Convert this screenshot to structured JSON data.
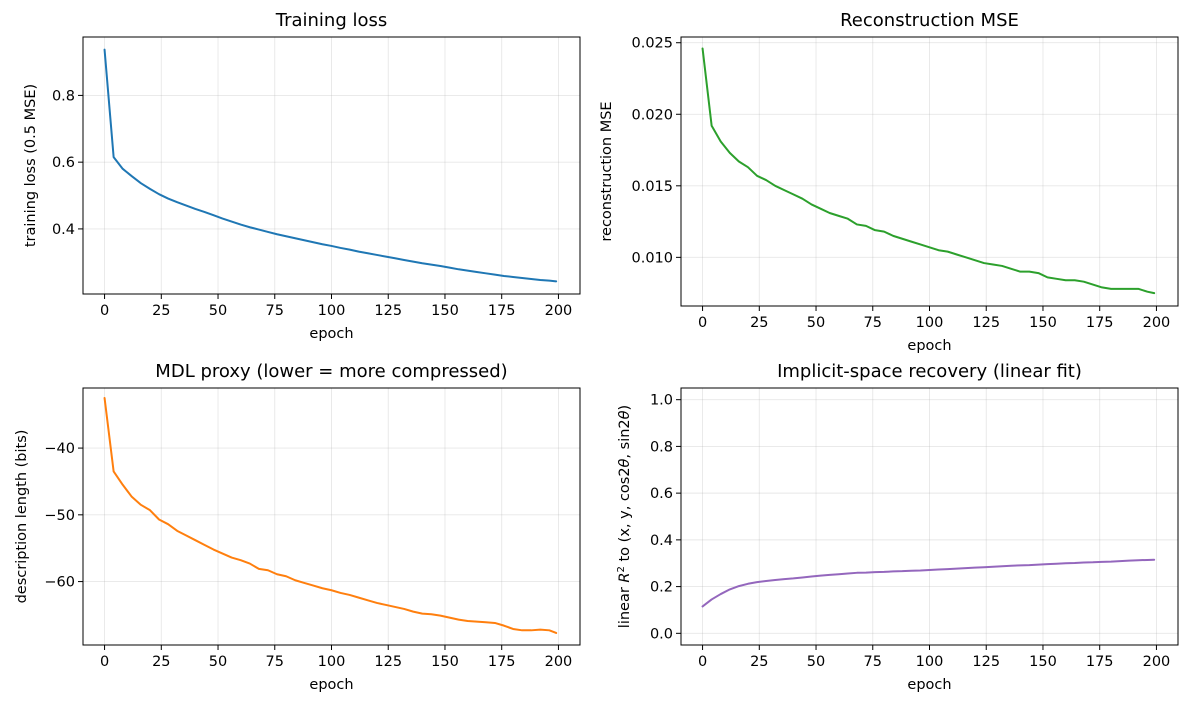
{
  "chart_data": [
    {
      "type": "line",
      "title": "Training loss",
      "xlabel": "epoch",
      "ylabel": "training loss (0.5 MSE)",
      "xlim": [
        -9.5,
        209.5
      ],
      "ylim": [
        0.205,
        0.975
      ],
      "xticks": [
        0,
        25,
        50,
        75,
        100,
        125,
        150,
        175,
        200
      ],
      "yticks": [
        0.4,
        0.6,
        0.8
      ],
      "ytick_labels": [
        "0.4",
        "0.6",
        "0.8"
      ],
      "grid": true,
      "color": "#1f77b4",
      "series": [
        {
          "x": [
            0,
            4,
            8,
            12,
            16,
            20,
            24,
            28,
            32,
            36,
            40,
            44,
            48,
            52,
            56,
            60,
            64,
            68,
            72,
            76,
            80,
            84,
            88,
            92,
            96,
            100,
            104,
            108,
            112,
            116,
            120,
            124,
            128,
            132,
            136,
            140,
            144,
            148,
            152,
            156,
            160,
            164,
            168,
            172,
            176,
            180,
            184,
            188,
            192,
            196,
            199
          ],
          "values": [
            0.937,
            0.615,
            0.58,
            0.558,
            0.537,
            0.52,
            0.504,
            0.491,
            0.48,
            0.47,
            0.46,
            0.451,
            0.441,
            0.431,
            0.422,
            0.413,
            0.405,
            0.398,
            0.391,
            0.384,
            0.378,
            0.372,
            0.366,
            0.36,
            0.354,
            0.349,
            0.343,
            0.338,
            0.332,
            0.327,
            0.322,
            0.317,
            0.312,
            0.307,
            0.302,
            0.297,
            0.293,
            0.289,
            0.284,
            0.279,
            0.275,
            0.271,
            0.267,
            0.263,
            0.259,
            0.256,
            0.253,
            0.25,
            0.247,
            0.245,
            0.243
          ]
        }
      ]
    },
    {
      "type": "line",
      "title": "Reconstruction MSE",
      "xlabel": "epoch",
      "ylabel": "reconstruction MSE",
      "xlim": [
        -9.5,
        209.5
      ],
      "ylim": [
        0.0066,
        0.0254
      ],
      "xticks": [
        0,
        25,
        50,
        75,
        100,
        125,
        150,
        175,
        200
      ],
      "yticks": [
        0.01,
        0.015,
        0.02,
        0.025
      ],
      "ytick_labels": [
        "0.010",
        "0.015",
        "0.020",
        "0.025"
      ],
      "grid": true,
      "color": "#2ca02c",
      "series": [
        {
          "x": [
            0,
            4,
            8,
            12,
            16,
            20,
            24,
            28,
            32,
            36,
            40,
            44,
            48,
            52,
            56,
            60,
            64,
            68,
            72,
            76,
            80,
            84,
            88,
            92,
            96,
            100,
            104,
            108,
            112,
            116,
            120,
            124,
            128,
            132,
            136,
            140,
            144,
            148,
            152,
            156,
            160,
            164,
            168,
            172,
            176,
            180,
            184,
            188,
            192,
            196,
            199
          ],
          "values": [
            0.0246,
            0.0192,
            0.0181,
            0.0173,
            0.0167,
            0.0163,
            0.0157,
            0.0154,
            0.015,
            0.0147,
            0.0144,
            0.0141,
            0.0137,
            0.0134,
            0.0131,
            0.0129,
            0.0127,
            0.0123,
            0.0122,
            0.0119,
            0.0118,
            0.0115,
            0.0113,
            0.0111,
            0.0109,
            0.0107,
            0.0105,
            0.0104,
            0.0102,
            0.01,
            0.0098,
            0.0096,
            0.0095,
            0.0094,
            0.0092,
            0.009,
            0.009,
            0.0089,
            0.0086,
            0.0085,
            0.0084,
            0.0084,
            0.0083,
            0.0081,
            0.0079,
            0.0078,
            0.0078,
            0.0078,
            0.0078,
            0.0076,
            0.0075
          ]
        }
      ]
    },
    {
      "type": "line",
      "title": "MDL proxy (lower = more compressed)",
      "xlabel": "epoch",
      "ylabel": "description length (bits)",
      "xlim": [
        -9.5,
        209.5
      ],
      "ylim": [
        -69.5,
        -31.0
      ],
      "xticks": [
        0,
        25,
        50,
        75,
        100,
        125,
        150,
        175,
        200
      ],
      "yticks": [
        -60,
        -50,
        -40
      ],
      "ytick_labels": [
        "−60",
        "−50",
        "−40"
      ],
      "grid": true,
      "color": "#ff7f0e",
      "series": [
        {
          "x": [
            0,
            4,
            8,
            12,
            16,
            20,
            24,
            28,
            32,
            36,
            40,
            44,
            48,
            52,
            56,
            60,
            64,
            68,
            72,
            76,
            80,
            84,
            88,
            92,
            96,
            100,
            104,
            108,
            112,
            116,
            120,
            124,
            128,
            132,
            136,
            140,
            144,
            148,
            152,
            156,
            160,
            164,
            168,
            172,
            176,
            180,
            184,
            188,
            192,
            196,
            199
          ],
          "values": [
            -32.5,
            -43.5,
            -45.5,
            -47.3,
            -48.5,
            -49.3,
            -50.7,
            -51.4,
            -52.4,
            -53.1,
            -53.8,
            -54.5,
            -55.2,
            -55.8,
            -56.4,
            -56.8,
            -57.3,
            -58.1,
            -58.3,
            -58.9,
            -59.2,
            -59.8,
            -60.2,
            -60.6,
            -61.0,
            -61.3,
            -61.7,
            -62.0,
            -62.4,
            -62.8,
            -63.2,
            -63.5,
            -63.8,
            -64.1,
            -64.5,
            -64.8,
            -64.9,
            -65.1,
            -65.4,
            -65.7,
            -65.9,
            -66.0,
            -66.1,
            -66.2,
            -66.6,
            -67.1,
            -67.3,
            -67.3,
            -67.2,
            -67.3,
            -67.7
          ]
        }
      ]
    },
    {
      "type": "line",
      "title": "Implicit-space recovery (linear fit)",
      "xlabel": "epoch",
      "ylabel_parts": [
        "linear ",
        "R",
        "2",
        " to (x, y, cos2",
        "θ",
        ", sin2",
        "θ",
        ")"
      ],
      "xlim": [
        -9.5,
        209.5
      ],
      "ylim": [
        -0.05,
        1.05
      ],
      "xticks": [
        0,
        25,
        50,
        75,
        100,
        125,
        150,
        175,
        200
      ],
      "yticks": [
        0,
        0.2,
        0.4,
        0.6,
        0.8,
        1.0
      ],
      "ytick_labels": [
        "0.0",
        "0.2",
        "0.4",
        "0.6",
        "0.8",
        "1.0"
      ],
      "grid": true,
      "color": "#9467bd",
      "series": [
        {
          "x": [
            0,
            4,
            8,
            12,
            16,
            20,
            24,
            28,
            32,
            36,
            40,
            44,
            48,
            52,
            56,
            60,
            64,
            68,
            72,
            76,
            80,
            84,
            88,
            92,
            96,
            100,
            104,
            108,
            112,
            116,
            120,
            124,
            128,
            132,
            136,
            140,
            144,
            148,
            152,
            156,
            160,
            164,
            168,
            172,
            176,
            180,
            184,
            188,
            192,
            196,
            199
          ],
          "values": [
            0.115,
            0.145,
            0.168,
            0.188,
            0.202,
            0.212,
            0.219,
            0.224,
            0.228,
            0.232,
            0.235,
            0.239,
            0.243,
            0.247,
            0.25,
            0.253,
            0.256,
            0.259,
            0.26,
            0.262,
            0.263,
            0.265,
            0.266,
            0.268,
            0.269,
            0.271,
            0.273,
            0.275,
            0.277,
            0.279,
            0.281,
            0.283,
            0.285,
            0.287,
            0.289,
            0.291,
            0.292,
            0.294,
            0.296,
            0.298,
            0.3,
            0.301,
            0.303,
            0.304,
            0.306,
            0.307,
            0.309,
            0.311,
            0.313,
            0.314,
            0.315
          ]
        }
      ]
    }
  ]
}
